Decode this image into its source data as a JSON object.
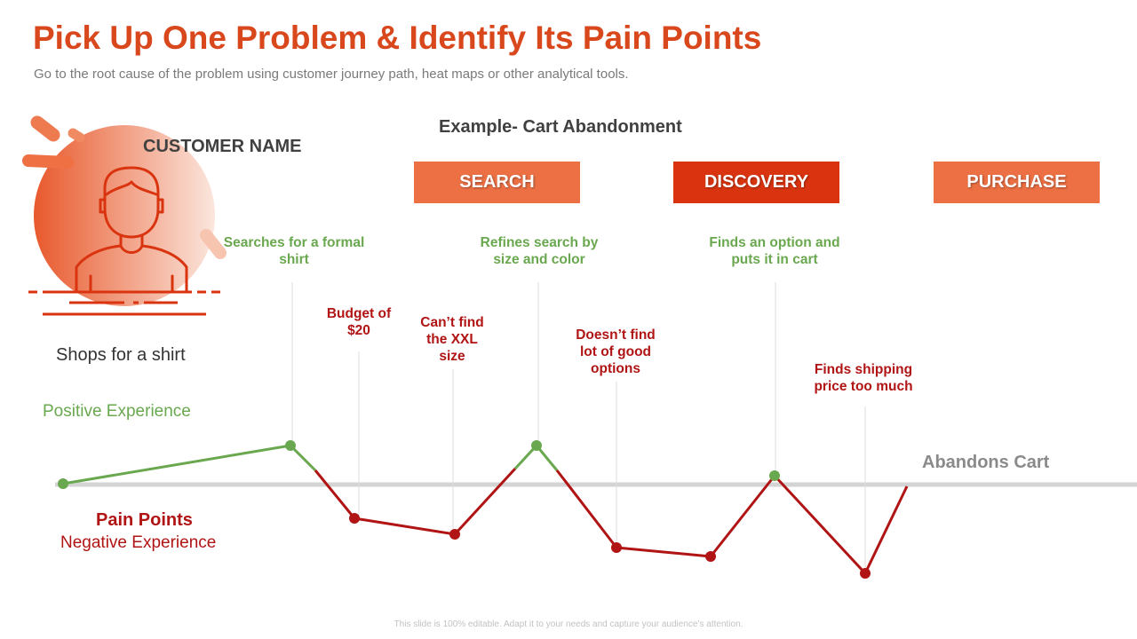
{
  "header": {
    "title": "Pick Up One Problem & Identify Its Pain Points",
    "subtitle": "Go to the root cause of the problem using customer journey path, heat maps or other analytical tools."
  },
  "persona": {
    "name_label": "CUSTOMER NAME",
    "action": "Shops for a shirt",
    "icon": "person-icon"
  },
  "example_title": "Example- Cart Abandonment",
  "phases": [
    {
      "label": "SEARCH",
      "color": "#ec7044"
    },
    {
      "label": "DISCOVERY",
      "color": "#d9340f"
    },
    {
      "label": "PURCHASE",
      "color": "#ec7044"
    }
  ],
  "axis": {
    "positive_label": "Positive Experience",
    "pain_label": "Pain Points",
    "negative_label": "Negative Experience",
    "end_label": "Abandons Cart"
  },
  "journey_points": [
    {
      "label": "",
      "type": "positive"
    },
    {
      "label": "Searches for a formal shirt",
      "type": "positive"
    },
    {
      "label": "Budget of $20",
      "type": "negative"
    },
    {
      "label": "Can’t find the XXL size",
      "type": "negative"
    },
    {
      "label": "Refines search by size and color",
      "type": "positive"
    },
    {
      "label": "Doesn’t find lot of good options",
      "type": "negative"
    },
    {
      "label": "",
      "type": "negative"
    },
    {
      "label": "Finds an option and puts it in cart",
      "type": "positive"
    },
    {
      "label": "Finds shipping price too much",
      "type": "negative"
    }
  ],
  "colors": {
    "accent": "#d9471c",
    "positive": "#6aa84f",
    "negative": "#b01414",
    "baseline": "#d4d4d4"
  },
  "footer": "This slide is 100% editable. Adapt it to your needs and capture your audience’s attention."
}
